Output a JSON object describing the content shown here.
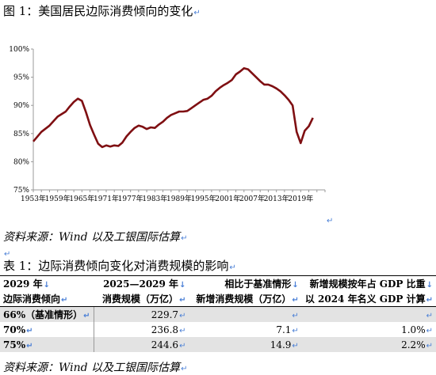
{
  "figure": {
    "title": "图 1：美国居民边际消费倾向的变化",
    "source": "资料来源：Wind 以及工银国际估算"
  },
  "chart_data": {
    "type": "line",
    "title": "",
    "xlabel": "",
    "ylabel": "",
    "ylim": [
      75,
      100
    ],
    "yticks": [
      "75%",
      "80%",
      "85%",
      "90%",
      "95%",
      "100%"
    ],
    "xticks": [
      "1953年",
      "1959年",
      "1965年",
      "1971年",
      "1977年",
      "1983年",
      "1989年",
      "1995年",
      "2001年",
      "2007年",
      "2013年",
      "2019年"
    ],
    "line_color": "#7f0f12",
    "grid": false,
    "series": [
      {
        "values": [
          [
            1953,
            83.6
          ],
          [
            1955,
            85.3
          ],
          [
            1957,
            86.4
          ],
          [
            1959,
            88.0
          ],
          [
            1961,
            88.9
          ],
          [
            1962,
            89.8
          ],
          [
            1963,
            90.6
          ],
          [
            1964,
            91.2
          ],
          [
            1965,
            90.8
          ],
          [
            1966,
            88.8
          ],
          [
            1967,
            86.5
          ],
          [
            1968,
            84.8
          ],
          [
            1969,
            83.2
          ],
          [
            1970,
            82.6
          ],
          [
            1971,
            82.9
          ],
          [
            1972,
            82.7
          ],
          [
            1973,
            82.9
          ],
          [
            1974,
            82.8
          ],
          [
            1975,
            83.4
          ],
          [
            1976,
            84.5
          ],
          [
            1977,
            85.3
          ],
          [
            1978,
            86.0
          ],
          [
            1979,
            86.4
          ],
          [
            1980,
            86.2
          ],
          [
            1981,
            85.8
          ],
          [
            1982,
            86.1
          ],
          [
            1983,
            86.0
          ],
          [
            1984,
            86.6
          ],
          [
            1985,
            87.1
          ],
          [
            1986,
            87.8
          ],
          [
            1987,
            88.3
          ],
          [
            1988,
            88.6
          ],
          [
            1989,
            88.9
          ],
          [
            1990,
            88.9
          ],
          [
            1991,
            89.0
          ],
          [
            1992,
            89.5
          ],
          [
            1993,
            90.0
          ],
          [
            1994,
            90.5
          ],
          [
            1995,
            91.0
          ],
          [
            1996,
            91.2
          ],
          [
            1997,
            91.7
          ],
          [
            1998,
            92.5
          ],
          [
            1999,
            93.1
          ],
          [
            2000,
            93.6
          ],
          [
            2001,
            94.0
          ],
          [
            2002,
            94.5
          ],
          [
            2003,
            95.5
          ],
          [
            2004,
            96.0
          ],
          [
            2005,
            96.6
          ],
          [
            2006,
            96.4
          ],
          [
            2007,
            95.7
          ],
          [
            2008,
            95.0
          ],
          [
            2009,
            94.3
          ],
          [
            2010,
            93.7
          ],
          [
            2011,
            93.7
          ],
          [
            2012,
            93.4
          ],
          [
            2013,
            93.0
          ],
          [
            2014,
            92.5
          ],
          [
            2015,
            91.8
          ],
          [
            2016,
            91.0
          ],
          [
            2017,
            90.0
          ],
          [
            2018,
            85.3
          ],
          [
            2019,
            83.3
          ],
          [
            2020,
            85.5
          ],
          [
            2021,
            86.3
          ],
          [
            2022,
            87.8
          ]
        ]
      }
    ]
  },
  "table": {
    "title": "表 1：边际消费倾向变化对消费规模的影响",
    "header1": [
      "2029 年",
      "2025—2029 年",
      "相比于基准情形",
      "新增规模按年占 GDP 比重"
    ],
    "header2": [
      "边际消费倾向",
      "消费规模（万亿）",
      "新增消费规模（万亿）",
      "以 2024 年名义 GDP 计算"
    ],
    "rows": [
      [
        "66%（基准情形）",
        "229.7",
        "",
        ""
      ],
      [
        "70%",
        "236.8",
        "7.1",
        "1.0%"
      ],
      [
        "75%",
        "244.6",
        "14.9",
        "2.2%"
      ]
    ],
    "source": "资料来源：Wind 以及工银国际估算"
  },
  "marks": {
    "return": "↵",
    "down": "↓"
  }
}
